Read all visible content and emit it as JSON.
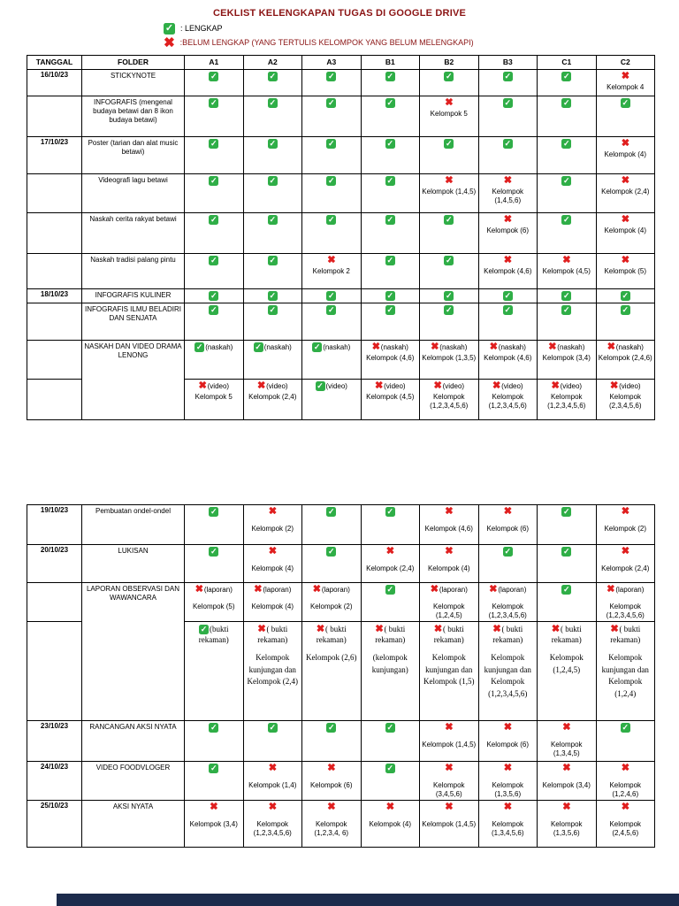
{
  "title": "CEKLIST KELENGKAPAN TUGAS DI GOOGLE DRIVE",
  "legend": {
    "check_label": ": LENGKAP",
    "cross_label": ":BELUM LENGKAP (YANG TERTULIS KELOMPOK YANG BELUM MELENGKAPI)"
  },
  "colors": {
    "title": "#8b1414",
    "check": "#2fae47",
    "cross": "#e01f1f",
    "footer_bar": "#1c2b4c"
  },
  "columns": [
    "TANGGAL",
    "FOLDER",
    "A1",
    "A2",
    "A3",
    "B1",
    "B2",
    "B3",
    "C1",
    "C2"
  ],
  "table1": {
    "rows": [
      {
        "date": "16/10/23",
        "folder": {
          "text": "STICKYNOTE"
        },
        "cells": [
          {
            "mark": "check"
          },
          {
            "mark": "check"
          },
          {
            "mark": "check"
          },
          {
            "mark": "check"
          },
          {
            "mark": "check"
          },
          {
            "mark": "check"
          },
          {
            "mark": "check"
          },
          {
            "mark": "cross",
            "note": "Kelompok 4"
          }
        ]
      },
      {
        "date": "",
        "folder": {
          "text": "INFOGRAFIS (mengenal budaya betawi dan 8 ikon budaya betawi)"
        },
        "cells": [
          {
            "mark": "check"
          },
          {
            "mark": "check"
          },
          {
            "mark": "check"
          },
          {
            "mark": "check"
          },
          {
            "mark": "cross",
            "note": "Kelompok 5"
          },
          {
            "mark": "check"
          },
          {
            "mark": "check"
          },
          {
            "mark": "check"
          }
        ]
      },
      {
        "date": "17/10/23",
        "folder": {
          "text": "Poster (tarian dan alat music betawi)"
        },
        "cells": [
          {
            "mark": "check"
          },
          {
            "mark": "check"
          },
          {
            "mark": "check"
          },
          {
            "mark": "check"
          },
          {
            "mark": "check"
          },
          {
            "mark": "check"
          },
          {
            "mark": "check"
          },
          {
            "mark": "cross",
            "note": "Kelompok (4)"
          }
        ]
      },
      {
        "date": "",
        "folder": {
          "text": "Videografi lagu betawi"
        },
        "cells": [
          {
            "mark": "check"
          },
          {
            "mark": "check"
          },
          {
            "mark": "check"
          },
          {
            "mark": "check"
          },
          {
            "mark": "cross",
            "note": "Kelompok (1,4,5)"
          },
          {
            "mark": "cross",
            "note": "Kelompok (1,4,5,6)"
          },
          {
            "mark": "check"
          },
          {
            "mark": "cross",
            "note": "Kelompok (2,4)"
          }
        ]
      },
      {
        "date": "",
        "folder": {
          "text": "Naskah cerita rakyat betawi"
        },
        "cells": [
          {
            "mark": "check"
          },
          {
            "mark": "check"
          },
          {
            "mark": "check"
          },
          {
            "mark": "check"
          },
          {
            "mark": "check"
          },
          {
            "mark": "cross",
            "note": "Kelompok (6)"
          },
          {
            "mark": "check"
          },
          {
            "mark": "cross",
            "note": "Kelompok (4)"
          }
        ]
      },
      {
        "date": "",
        "folder": {
          "text": "Naskah tradisi palang pintu"
        },
        "cells": [
          {
            "mark": "check"
          },
          {
            "mark": "check"
          },
          {
            "mark": "cross",
            "note": "Kelompok 2"
          },
          {
            "mark": "check"
          },
          {
            "mark": "check"
          },
          {
            "mark": "cross",
            "note": "Kelompok (4,6)"
          },
          {
            "mark": "cross",
            "note": "Kelompok (4,5)"
          },
          {
            "mark": "cross",
            "note": "Kelompok (5)"
          }
        ]
      },
      {
        "date": "18/10/23",
        "folder": {
          "text": "INFOGRAFIS KULINER"
        },
        "cells": [
          {
            "mark": "check"
          },
          {
            "mark": "check"
          },
          {
            "mark": "check"
          },
          {
            "mark": "check"
          },
          {
            "mark": "check"
          },
          {
            "mark": "check"
          },
          {
            "mark": "check"
          },
          {
            "mark": "check"
          }
        ]
      },
      {
        "date": "",
        "folder": {
          "text": "INFOGRAFIS ILMU BELADIRI DAN SENJATA"
        },
        "cells": [
          {
            "mark": "check"
          },
          {
            "mark": "check"
          },
          {
            "mark": "check"
          },
          {
            "mark": "check"
          },
          {
            "mark": "check"
          },
          {
            "mark": "check"
          },
          {
            "mark": "check"
          },
          {
            "mark": "check"
          }
        ]
      },
      {
        "date": "",
        "folder": {
          "text": "NASKAH DAN VIDEO DRAMA LENONG",
          "rowspan": 2
        },
        "cells": [
          {
            "mark": "check",
            "suffix": "(naskah)"
          },
          {
            "mark": "check",
            "suffix": "(naskah)"
          },
          {
            "mark": "check",
            "suffix": "(naskah)"
          },
          {
            "mark": "cross",
            "suffix": "(naskah)",
            "note": "Kelompok (4,6)"
          },
          {
            "mark": "cross",
            "suffix": "(naskah)",
            "note": "Kelompok (1,3,5)"
          },
          {
            "mark": "cross",
            "suffix": "(naskah)",
            "note": "Kelompok (4,6)"
          },
          {
            "mark": "cross",
            "suffix": "(naskah)",
            "note": "Kelompok (3,4)"
          },
          {
            "mark": "cross",
            "suffix": "(naskah)",
            "note": "Kelompok (2,4,6)"
          }
        ]
      },
      {
        "date": "",
        "folder": null,
        "cells": [
          {
            "mark": "cross",
            "suffix": "(video)",
            "note": "Kelompok 5"
          },
          {
            "mark": "cross",
            "suffix": "(video)",
            "note": "Kelompok (2,4)"
          },
          {
            "mark": "check",
            "suffix": "(video)"
          },
          {
            "mark": "cross",
            "suffix": "(video)",
            "note": "Kelompok (4,5)"
          },
          {
            "mark": "cross",
            "suffix": "(video)",
            "note": "Kelompok (1,2,3,4,5,6)"
          },
          {
            "mark": "cross",
            "suffix": "(video)",
            "note": "Kelompok (1,2,3,4,5,6)"
          },
          {
            "mark": "cross",
            "suffix": "(video)",
            "note": "Kelompok (1,2,3,4,5,6)"
          },
          {
            "mark": "cross",
            "suffix": "(video)",
            "note": "Kelompok (2,3,4,5,6)"
          }
        ]
      }
    ]
  },
  "table2": {
    "rows": [
      {
        "date": "19/10/23",
        "folder": {
          "text": "Pembuatan ondel-ondel"
        },
        "cells": [
          {
            "mark": "check"
          },
          {
            "mark": "cross",
            "note": "Kelompok (2)"
          },
          {
            "mark": "check"
          },
          {
            "mark": "check"
          },
          {
            "mark": "cross",
            "note": "Kelompok (4,6)"
          },
          {
            "mark": "cross",
            "note": "Kelompok (6)"
          },
          {
            "mark": "check"
          },
          {
            "mark": "cross",
            "note": "Kelompok (2)"
          }
        ]
      },
      {
        "date": "20/10/23",
        "folder": {
          "text": "LUKISAN"
        },
        "cells": [
          {
            "mark": "check"
          },
          {
            "mark": "cross",
            "note": "Kelompok (4)"
          },
          {
            "mark": "check"
          },
          {
            "mark": "cross",
            "note": "Kelompok (2,4)"
          },
          {
            "mark": "cross",
            "note": "Kelompok (4)"
          },
          {
            "mark": "check"
          },
          {
            "mark": "check"
          },
          {
            "mark": "cross",
            "note": "Kelompok (2,4)"
          }
        ]
      },
      {
        "date": "",
        "folder": {
          "text": "LAPORAN OBSERVASI DAN WAWANCARA",
          "rowspan": 2
        },
        "cells": [
          {
            "mark": "cross",
            "suffix": "(laporan)",
            "note": "Kelompok (5)"
          },
          {
            "mark": "cross",
            "suffix": "(laporan)",
            "note": "Kelompok (4)"
          },
          {
            "mark": "cross",
            "suffix": "(laporan)",
            "note": "Kelompok (2)"
          },
          {
            "mark": "check"
          },
          {
            "mark": "cross",
            "suffix": "(laporan)",
            "note": "Kelompok (1,2,4,5)"
          },
          {
            "mark": "cross",
            "suffix": "(laporan)",
            "note": "Kelompok (1,2,3,4,5,6)"
          },
          {
            "mark": "check"
          },
          {
            "mark": "cross",
            "suffix": "(laporan)",
            "note": "Kelompok (1,2,3,4,5,6)"
          }
        ]
      },
      {
        "date": "",
        "folder": null,
        "serif": true,
        "cells": [
          {
            "mark": "check",
            "suffix": "(bukti rekaman)"
          },
          {
            "mark": "cross",
            "suffix": "( bukti rekaman)",
            "note": "Kelompok kunjungan dan Kelompok (2,4)"
          },
          {
            "mark": "cross",
            "suffix": "( bukti rekaman)",
            "note": "Kelompok (2,6)"
          },
          {
            "mark": "cross",
            "suffix": "( bukti rekaman)",
            "note": "(kelompok kunjungan)"
          },
          {
            "mark": "cross",
            "suffix": "( bukti rekaman)",
            "note": "Kelompok kunjungan dan Kelompok (1,5)"
          },
          {
            "mark": "cross",
            "suffix": "( bukti rekaman)",
            "note": "Kelompok kunjungan dan Kelompok (1,2,3,4,5,6)"
          },
          {
            "mark": "cross",
            "suffix": "( bukti rekaman)",
            "note": "Kelompok (1,2,4,5)"
          },
          {
            "mark": "cross",
            "suffix": "( bukti rekaman)",
            "note": "Kelompok kunjungan dan Kelompok (1,2,4)"
          }
        ]
      },
      {
        "date": "23/10/23",
        "folder": {
          "text": "RANCANGAN AKSI NYATA"
        },
        "cells": [
          {
            "mark": "check"
          },
          {
            "mark": "check"
          },
          {
            "mark": "check"
          },
          {
            "mark": "check"
          },
          {
            "mark": "cross",
            "note": "Kelompok (1,4,5)"
          },
          {
            "mark": "cross",
            "note": "Kelompok (6)"
          },
          {
            "mark": "cross",
            "note": "Kelompok (1,3,4,5)"
          },
          {
            "mark": "check"
          }
        ]
      },
      {
        "date": "24/10/23",
        "folder": {
          "text": "VIDEO FOODVLOGER"
        },
        "cells": [
          {
            "mark": "check"
          },
          {
            "mark": "cross",
            "note": "Kelompok (1,4)"
          },
          {
            "mark": "cross",
            "note": "Kelompok (6)"
          },
          {
            "mark": "check"
          },
          {
            "mark": "cross",
            "note": "Kelompok (3,4,5,6)"
          },
          {
            "mark": "cross",
            "note": "Kelompok (1,3,5,6)"
          },
          {
            "mark": "cross",
            "note": "Kelompok (3,4)"
          },
          {
            "mark": "cross",
            "note": "Kelompok (1,2,4,6)"
          }
        ]
      },
      {
        "date": "25/10/23",
        "folder": {
          "text": "AKSI NYATA"
        },
        "cells": [
          {
            "mark": "cross",
            "note": "Kelompok (3,4)"
          },
          {
            "mark": "cross",
            "note": "Kelompok (1,2,3,4,5,6)"
          },
          {
            "mark": "cross",
            "note": "Kelompok (1,2,3,4, 6)"
          },
          {
            "mark": "cross",
            "note": "Kelompok (4)"
          },
          {
            "mark": "cross",
            "note": "Kelompok (1,4,5)"
          },
          {
            "mark": "cross",
            "note": "Kelompok (1,3,4,5,6)"
          },
          {
            "mark": "cross",
            "note": "Kelompok (1,3,5,6)"
          },
          {
            "mark": "cross",
            "note": "Kelompok (2,4,5,6)"
          }
        ]
      }
    ]
  }
}
